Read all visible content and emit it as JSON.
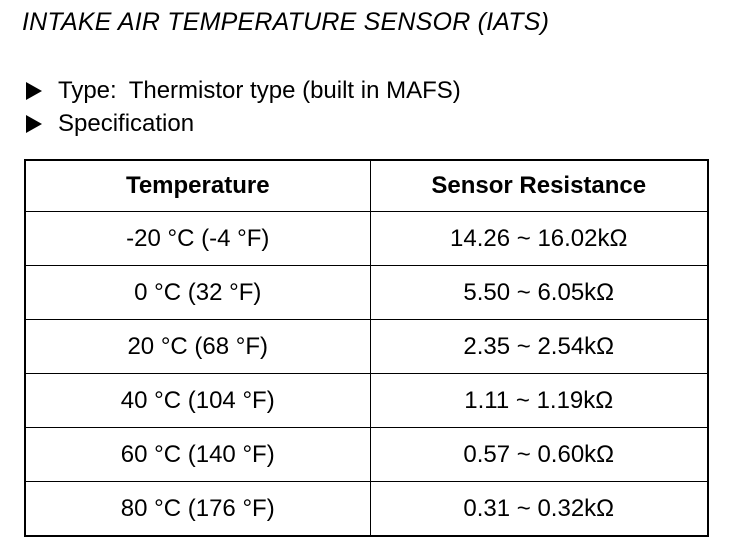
{
  "document": {
    "title": "INTAKE AIR TEMPERATURE SENSOR (IATS)",
    "bullets": [
      {
        "label": "Type:",
        "value": "Thermistor type (built in MAFS)"
      },
      {
        "label": "Specification",
        "value": ""
      }
    ],
    "table": {
      "headers": [
        "Temperature",
        "Sensor Resistance"
      ],
      "rows": [
        {
          "temperature": "-20 °C (-4 °F)",
          "resistance": "14.26 ~ 16.02kΩ"
        },
        {
          "temperature": "0 °C (32 °F)",
          "resistance": "5.50 ~ 6.05kΩ"
        },
        {
          "temperature": "20 °C (68 °F)",
          "resistance": "2.35 ~ 2.54kΩ"
        },
        {
          "temperature": "40 °C (104 °F)",
          "resistance": "1.11 ~ 1.19kΩ"
        },
        {
          "temperature": "60 °C (140 °F)",
          "resistance": "0.57 ~ 0.60kΩ"
        },
        {
          "temperature": "80 °C (176 °F)",
          "resistance": "0.31 ~ 0.32kΩ"
        }
      ]
    }
  }
}
